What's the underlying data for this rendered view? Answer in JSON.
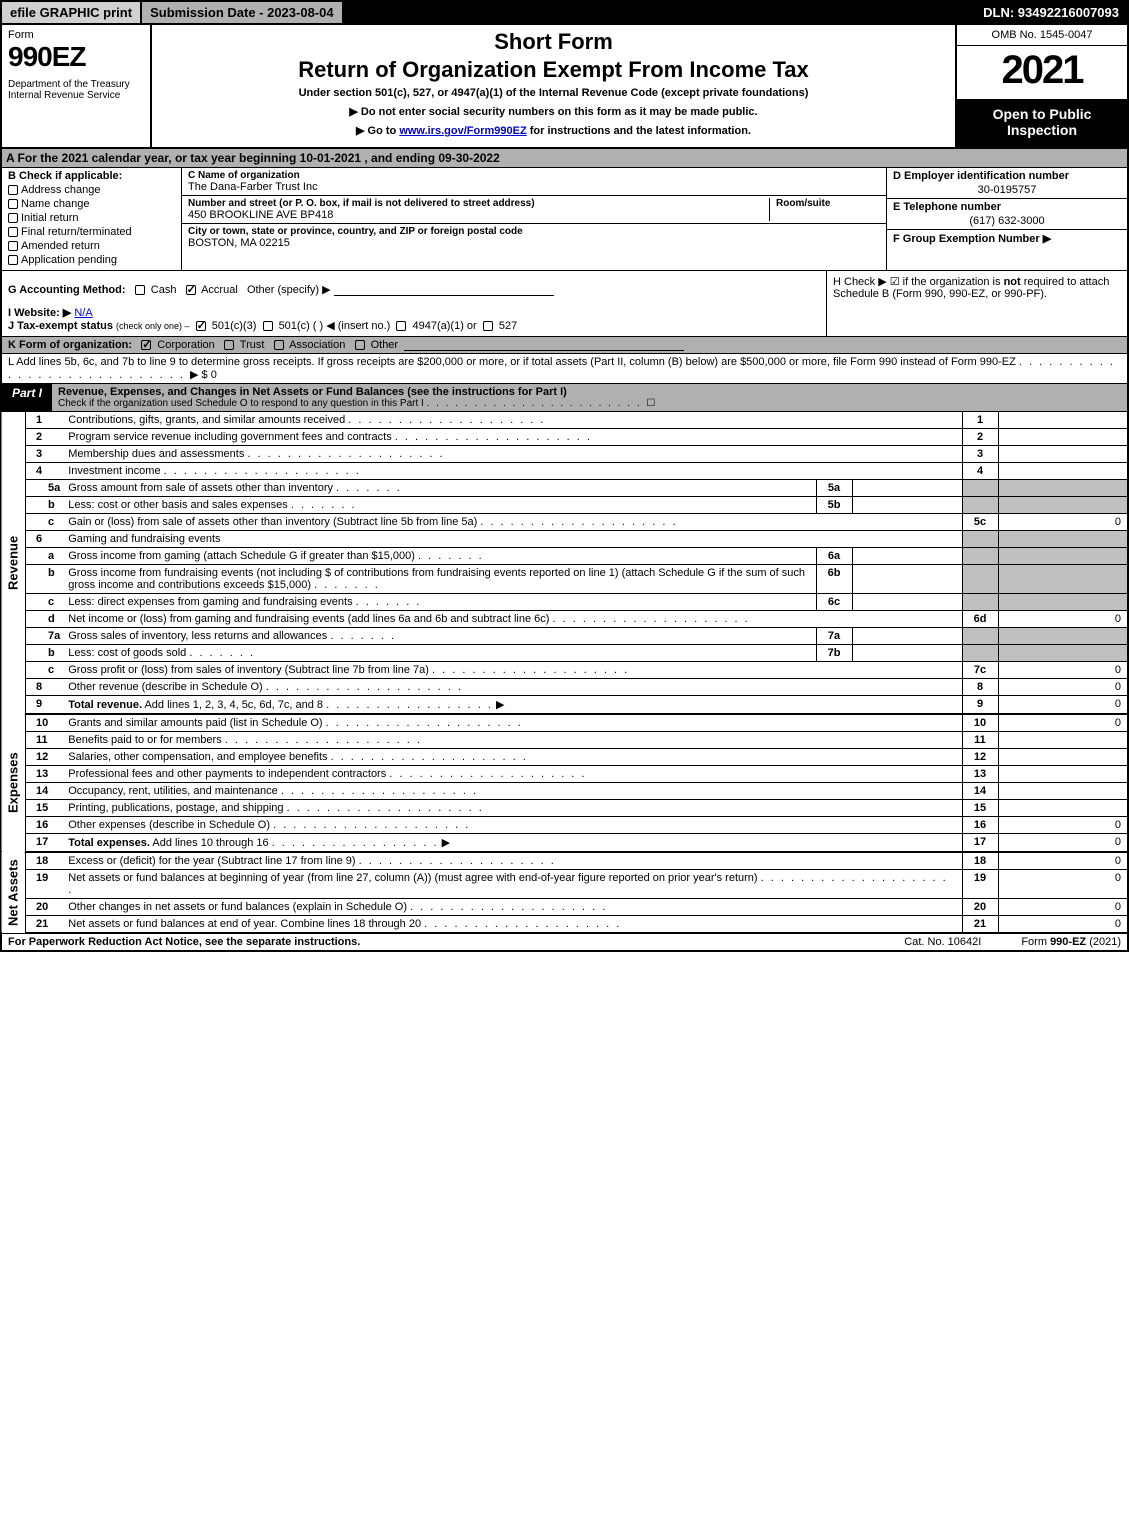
{
  "top_bar": {
    "efile": "efile GRAPHIC print",
    "submission": "Submission Date - 2023-08-04",
    "dln": "DLN: 93492216007093"
  },
  "header": {
    "form_word": "Form",
    "form_number": "990EZ",
    "dept": "Department of the Treasury\nInternal Revenue Service",
    "short_form": "Short Form",
    "main_title": "Return of Organization Exempt From Income Tax",
    "subtitle": "Under section 501(c), 527, or 4947(a)(1) of the Internal Revenue Code (except private foundations)",
    "note1": "▶ Do not enter social security numbers on this form as it may be made public.",
    "note2_pre": "▶ Go to ",
    "note2_link": "www.irs.gov/Form990EZ",
    "note2_post": " for instructions and the latest information.",
    "omb": "OMB No. 1545-0047",
    "year": "2021",
    "open_public": "Open to Public Inspection"
  },
  "row_a": "A  For the 2021 calendar year, or tax year beginning 10-01-2021 , and ending 09-30-2022",
  "section_b": {
    "heading": "B  Check if applicable:",
    "options": [
      "Address change",
      "Name change",
      "Initial return",
      "Final return/terminated",
      "Amended return",
      "Application pending"
    ]
  },
  "section_c": {
    "name_label": "C Name of organization",
    "name_value": "The Dana-Farber Trust Inc",
    "street_label": "Number and street (or P. O. box, if mail is not delivered to street address)",
    "street_value": "450 BROOKLINE AVE BP418",
    "room_label": "Room/suite",
    "room_value": "",
    "city_label": "City or town, state or province, country, and ZIP or foreign postal code",
    "city_value": "BOSTON, MA  02215"
  },
  "section_def": {
    "d_label": "D Employer identification number",
    "d_value": "30-0195757",
    "e_label": "E Telephone number",
    "e_value": "(617) 632-3000",
    "f_label": "F Group Exemption Number  ▶",
    "f_value": ""
  },
  "row_g": {
    "label": "G Accounting Method:",
    "cash": "Cash",
    "accrual": "Accrual",
    "other": "Other (specify) ▶"
  },
  "row_h": {
    "text1": "H  Check ▶ ☑ if the organization is ",
    "text_not": "not",
    "text2": " required to attach Schedule B (Form 990, 990-EZ, or 990-PF)."
  },
  "row_i": {
    "label": "I Website: ▶",
    "value": "N/A"
  },
  "row_j": {
    "label": "J Tax-exempt status",
    "sub": "(check only one) ‒",
    "opt1": "501(c)(3)",
    "opt2": "501(c) (    ) ◀ (insert no.)",
    "opt3": "4947(a)(1) or",
    "opt4": "527"
  },
  "row_k": {
    "label": "K Form of organization:",
    "opts": [
      "Corporation",
      "Trust",
      "Association",
      "Other"
    ]
  },
  "row_l": {
    "text": "L Add lines 5b, 6c, and 7b to line 9 to determine gross receipts. If gross receipts are $200,000 or more, or if total assets (Part II, column (B) below) are $500,000 or more, file Form 990 instead of Form 990-EZ",
    "amount": "▶ $ 0"
  },
  "part1": {
    "label": "Part I",
    "title": "Revenue, Expenses, and Changes in Net Assets or Fund Balances (see the instructions for Part I)",
    "sub": "Check if the organization used Schedule O to respond to any question in this Part I",
    "sub_box": "☐"
  },
  "side_labels": {
    "revenue": "Revenue",
    "expenses": "Expenses",
    "netassets": "Net Assets"
  },
  "revenue_lines": [
    {
      "n": "1",
      "desc": "Contributions, gifts, grants, and similar amounts received",
      "rn": "1",
      "rv": ""
    },
    {
      "n": "2",
      "desc": "Program service revenue including government fees and contracts",
      "rn": "2",
      "rv": ""
    },
    {
      "n": "3",
      "desc": "Membership dues and assessments",
      "rn": "3",
      "rv": ""
    },
    {
      "n": "4",
      "desc": "Investment income",
      "rn": "4",
      "rv": ""
    },
    {
      "n": "5a",
      "sub": true,
      "desc": "Gross amount from sale of assets other than inventory",
      "mn": "5a",
      "mv": "",
      "shade_right": true
    },
    {
      "n": "b",
      "sub": true,
      "desc": "Less: cost or other basis and sales expenses",
      "mn": "5b",
      "mv": "",
      "shade_right": true
    },
    {
      "n": "c",
      "sub": true,
      "desc": "Gain or (loss) from sale of assets other than inventory (Subtract line 5b from line 5a)",
      "rn": "5c",
      "rv": "0"
    },
    {
      "n": "6",
      "desc": "Gaming and fundraising events",
      "no_right": true,
      "shade_right": true
    },
    {
      "n": "a",
      "sub": true,
      "desc": "Gross income from gaming (attach Schedule G if greater than $15,000)",
      "mn": "6a",
      "mv": "",
      "shade_right": true
    },
    {
      "n": "b",
      "sub": true,
      "desc": "Gross income from fundraising events (not including $                  of contributions from fundraising events reported on line 1) (attach Schedule G if the sum of such gross income and contributions exceeds $15,000)",
      "mn": "6b",
      "mv": "",
      "shade_right": true
    },
    {
      "n": "c",
      "sub": true,
      "desc": "Less: direct expenses from gaming and fundraising events",
      "mn": "6c",
      "mv": "",
      "shade_right": true
    },
    {
      "n": "d",
      "sub": true,
      "desc": "Net income or (loss) from gaming and fundraising events (add lines 6a and 6b and subtract line 6c)",
      "rn": "6d",
      "rv": "0"
    },
    {
      "n": "7a",
      "sub": true,
      "desc": "Gross sales of inventory, less returns and allowances",
      "mn": "7a",
      "mv": "",
      "shade_right": true
    },
    {
      "n": "b",
      "sub": true,
      "desc": "Less: cost of goods sold",
      "mn": "7b",
      "mv": "",
      "shade_right": true
    },
    {
      "n": "c",
      "sub": true,
      "desc": "Gross profit or (loss) from sales of inventory (Subtract line 7b from line 7a)",
      "rn": "7c",
      "rv": "0"
    },
    {
      "n": "8",
      "desc": "Other revenue (describe in Schedule O)",
      "rn": "8",
      "rv": "0"
    },
    {
      "n": "9",
      "desc": "Total revenue. Add lines 1, 2, 3, 4, 5c, 6d, 7c, and 8",
      "bold": true,
      "arrow": true,
      "rn": "9",
      "rv": "0",
      "heavy": true
    }
  ],
  "expense_lines": [
    {
      "n": "10",
      "desc": "Grants and similar amounts paid (list in Schedule O)",
      "rn": "10",
      "rv": "0"
    },
    {
      "n": "11",
      "desc": "Benefits paid to or for members",
      "rn": "11",
      "rv": ""
    },
    {
      "n": "12",
      "desc": "Salaries, other compensation, and employee benefits",
      "rn": "12",
      "rv": ""
    },
    {
      "n": "13",
      "desc": "Professional fees and other payments to independent contractors",
      "rn": "13",
      "rv": ""
    },
    {
      "n": "14",
      "desc": "Occupancy, rent, utilities, and maintenance",
      "rn": "14",
      "rv": ""
    },
    {
      "n": "15",
      "desc": "Printing, publications, postage, and shipping",
      "rn": "15",
      "rv": ""
    },
    {
      "n": "16",
      "desc": "Other expenses (describe in Schedule O)",
      "rn": "16",
      "rv": "0"
    },
    {
      "n": "17",
      "desc": "Total expenses. Add lines 10 through 16",
      "bold": true,
      "arrow": true,
      "rn": "17",
      "rv": "0",
      "heavy": true
    }
  ],
  "netasset_lines": [
    {
      "n": "18",
      "desc": "Excess or (deficit) for the year (Subtract line 17 from line 9)",
      "rn": "18",
      "rv": "0"
    },
    {
      "n": "19",
      "desc": "Net assets or fund balances at beginning of year (from line 27, column (A)) (must agree with end-of-year figure reported on prior year's return)",
      "rn": "19",
      "rv": "0"
    },
    {
      "n": "20",
      "desc": "Other changes in net assets or fund balances (explain in Schedule O)",
      "rn": "20",
      "rv": "0"
    },
    {
      "n": "21",
      "desc": "Net assets or fund balances at end of year. Combine lines 18 through 20",
      "rn": "21",
      "rv": "0",
      "heavy": true
    }
  ],
  "footer": {
    "left": "For Paperwork Reduction Act Notice, see the separate instructions.",
    "mid": "Cat. No. 10642I",
    "right_pre": "Form ",
    "right_bold": "990-EZ",
    "right_post": " (2021)"
  },
  "colors": {
    "shade": "#c0c0c0",
    "header_gray": "#b0b0b0",
    "light_gray": "#d0d0d0",
    "black": "#000000",
    "white": "#ffffff",
    "link": "#0000cc"
  }
}
